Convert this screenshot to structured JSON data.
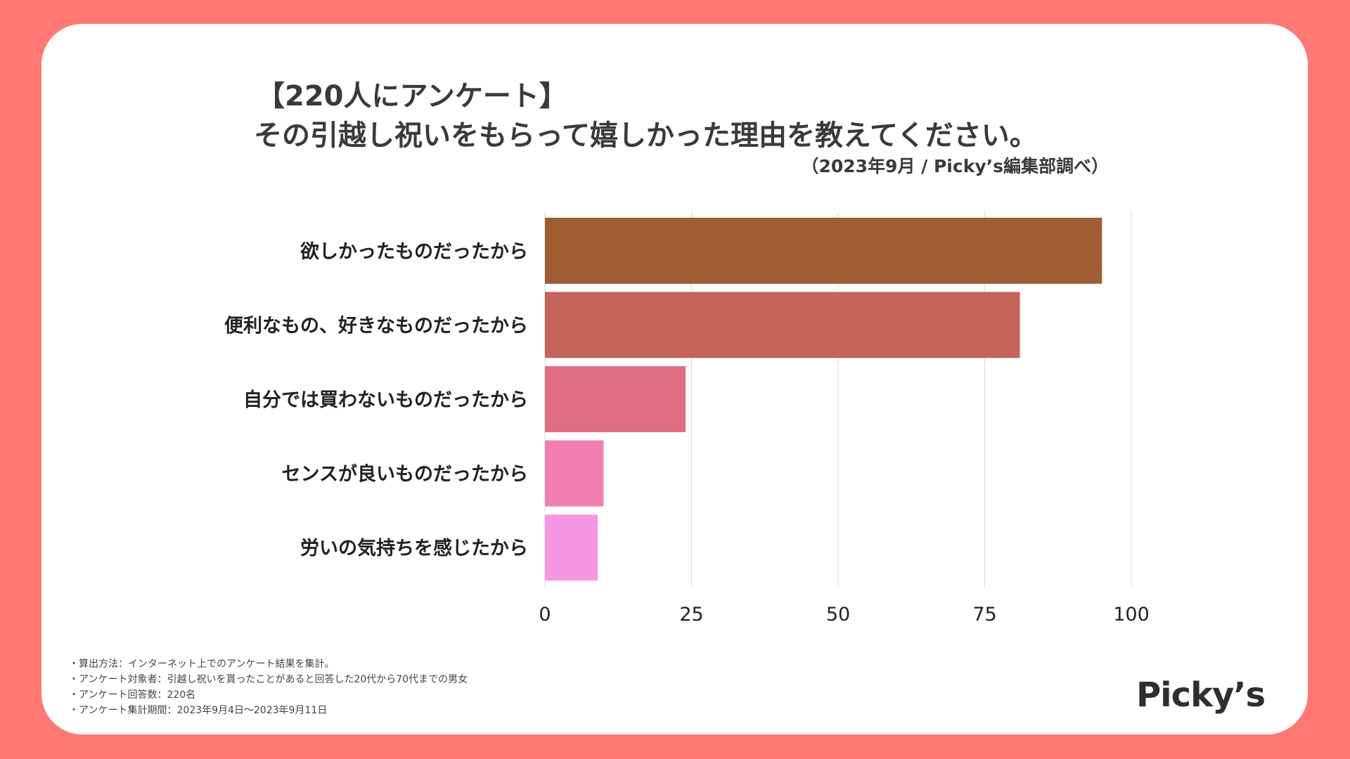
{
  "header": {
    "title_line1": "【220人にアンケート】",
    "title_line2": "その引越し祝いをもらって嬉しかった理由を教えてください。",
    "source": "（2023年9月 / Picky’s編集部調べ）"
  },
  "chart_data": {
    "type": "bar",
    "orientation": "horizontal",
    "categories": [
      "欲しかったものだったから",
      "便利なもの、好きなものだったから",
      "自分では買わないものだったから",
      "センスが良いものだったから",
      "労いの気持ちを感じたから"
    ],
    "values": [
      95,
      81,
      24,
      10,
      9
    ],
    "colors": [
      "#9e5d33",
      "#c5645a",
      "#e06e82",
      "#f07fb0",
      "#f797e3"
    ],
    "xlim": [
      0,
      100
    ],
    "xticks": [
      "0",
      "25",
      "50",
      "75",
      "100"
    ],
    "grid": true,
    "legend": "none"
  },
  "notes": [
    "・算出方法：インターネット上でのアンケート結果を集計。",
    "・アンケート対象者：引越し祝いを貰ったことがあると回答した20代から70代までの男女",
    "・アンケート回答数：220名",
    "・アンケート集計期間：2023年9月4日〜2023年9月11日"
  ],
  "logo": "Picky’s"
}
